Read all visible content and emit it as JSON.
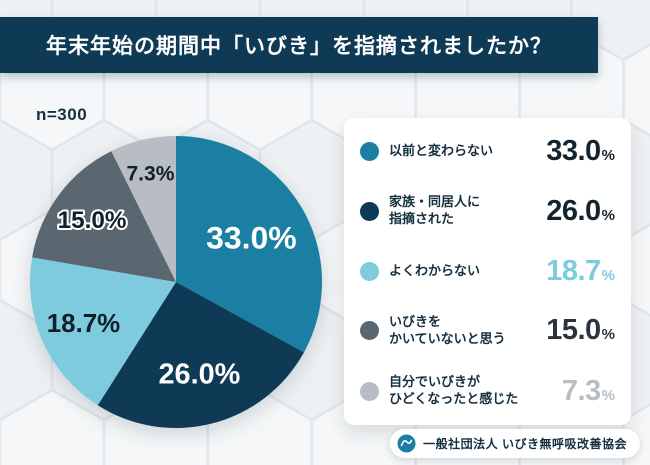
{
  "header": {
    "title": "年末年始の期間中「いびき」を指摘されましたか？"
  },
  "sample": {
    "label": "n=300"
  },
  "footer": {
    "org_name": "一般社団法人 いびき無呼吸改善協会"
  },
  "colors": {
    "banner_bg": "#0e3a55",
    "page_bg": "#eef1f3",
    "card_bg": "#ffffff",
    "hexagon_line": "#e0e6ea"
  },
  "chart_data": {
    "type": "pie",
    "title": "年末年始の期間中「いびき」を指摘されましたか？",
    "sample_size": 300,
    "unit": "%",
    "start_angle_deg": 0,
    "direction": "clockwise",
    "legend_position": "right",
    "slices": [
      {
        "name": "以前と変わらない",
        "name_lines": [
          "以前と変わらない"
        ],
        "value": 33.0,
        "display": "33.0",
        "color": "#1a7fa2",
        "label_color": "#ffffff",
        "legend_value_color": "#13242e"
      },
      {
        "name": "家族・同居人に指摘された",
        "name_lines": [
          "家族・同居人に",
          "指摘された"
        ],
        "value": 26.0,
        "display": "26.0",
        "color": "#0e3a55",
        "label_color": "#ffffff",
        "legend_value_color": "#13242e"
      },
      {
        "name": "よくわからない",
        "name_lines": [
          "よくわからない"
        ],
        "value": 18.7,
        "display": "18.7",
        "color": "#7ecbdd",
        "label_color": "#10202a",
        "legend_value_color": "#7ecbdd"
      },
      {
        "name": "いびきをかいていないと思う",
        "name_lines": [
          "いびきを",
          "かいていないと思う"
        ],
        "value": 15.0,
        "display": "15.0",
        "color": "#5a6670",
        "label_color": "#10202a",
        "legend_value_color": "#2b353d"
      },
      {
        "name": "自分でいびきがひどくなったと感じた",
        "name_lines": [
          "自分でいびきが",
          "ひどくなったと感じた"
        ],
        "value": 7.3,
        "display": "7.3",
        "color": "#b7bdc2",
        "label_color": "#10202a",
        "legend_value_color": "#b7bdc2"
      }
    ]
  }
}
